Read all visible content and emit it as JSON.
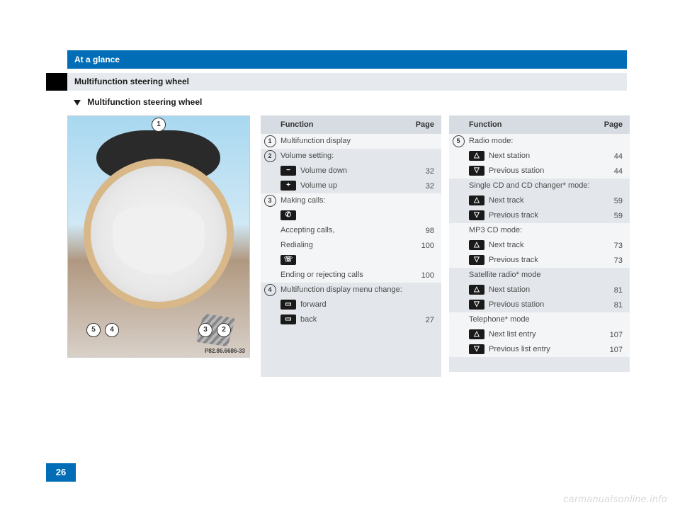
{
  "header": {
    "title": "At a glance"
  },
  "subbar": {
    "title": "Multifunction steering wheel"
  },
  "subtitle": {
    "text": "Multifunction steering wheel"
  },
  "figure": {
    "label": "P82.86.6686-33",
    "callouts": [
      "1",
      "2",
      "3",
      "4",
      "5"
    ]
  },
  "table_headers": {
    "function": "Function",
    "page": "Page"
  },
  "icons": {
    "minus": "−",
    "plus": "+",
    "phone_up": "✆",
    "phone_down": "☏",
    "fwd": "▭",
    "back": "▭",
    "up": "△",
    "down": "▽"
  },
  "table1": {
    "sections": [
      {
        "num": "1",
        "label": "Multifunction display",
        "shade": "light"
      },
      {
        "num": "2",
        "label": "Volume setting:",
        "shade": "dark",
        "rows": [
          {
            "icon": "minus",
            "text": "Volume down",
            "page": "32"
          },
          {
            "icon": "plus",
            "text": "Volume up",
            "page": "32"
          }
        ]
      },
      {
        "num": "3",
        "label": "Making calls:",
        "shade": "light",
        "rows": [
          {
            "icon": "phone_up",
            "text": "",
            "page": ""
          },
          {
            "text": "Accepting calls,",
            "page": "98"
          },
          {
            "text": "Redialing",
            "page": "100"
          },
          {
            "icon": "phone_down",
            "text": "",
            "page": ""
          },
          {
            "text": "Ending or rejecting calls",
            "page": "100"
          }
        ]
      },
      {
        "num": "4",
        "label": "Multifunction display menu change:",
        "shade": "dark",
        "rows": [
          {
            "icon": "fwd",
            "text": "forward",
            "page": ""
          },
          {
            "icon": "back",
            "text": "back",
            "page": "27"
          }
        ]
      }
    ],
    "filler_shade": "dark",
    "filler_height": 70
  },
  "table2": {
    "sections": [
      {
        "num": "5",
        "label": "Radio mode:",
        "shade": "light",
        "rows": [
          {
            "icon": "up",
            "text": "Next station",
            "page": "44"
          },
          {
            "icon": "down",
            "text": "Previous station",
            "page": "44"
          }
        ]
      },
      {
        "label": "Single CD and CD changer* mode:",
        "shade": "dark",
        "rows": [
          {
            "icon": "up",
            "text": "Next track",
            "page": "59"
          },
          {
            "icon": "down",
            "text": "Previous track",
            "page": "59"
          }
        ]
      },
      {
        "label": "MP3 CD mode:",
        "shade": "light",
        "rows": [
          {
            "icon": "up",
            "text": "Next track",
            "page": "73"
          },
          {
            "icon": "down",
            "text": "Previous track",
            "page": "73"
          }
        ]
      },
      {
        "label": "Satellite radio* mode",
        "shade": "dark",
        "rows": [
          {
            "icon": "up",
            "text": "Next station",
            "page": "81"
          },
          {
            "icon": "down",
            "text": "Previous station",
            "page": "81"
          }
        ]
      },
      {
        "label": "Telephone* mode",
        "shade": "light",
        "rows": [
          {
            "icon": "up",
            "text": "Next list entry",
            "page": "107"
          },
          {
            "icon": "down",
            "text": "Previous list entry",
            "page": "107"
          }
        ]
      }
    ],
    "filler_shade": "dark",
    "filler_height": 20
  },
  "page_number": "26",
  "watermark": "carmanualsonline.info"
}
